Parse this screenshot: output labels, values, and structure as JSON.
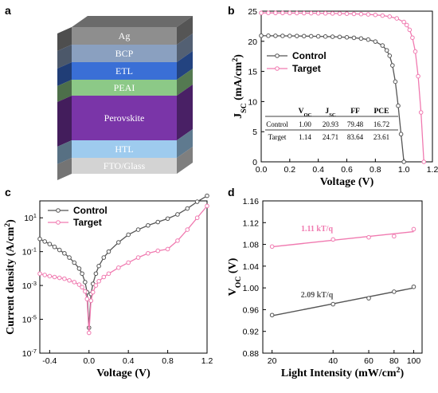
{
  "panels": {
    "a": "a",
    "b": "b",
    "c": "c",
    "d": "d"
  },
  "colors": {
    "control": "#555555",
    "target": "#f07ab0",
    "fit_d_target": "#f07ab0",
    "fit_d_control": "#555555"
  },
  "device_stack": {
    "layers": [
      {
        "label": "Ag",
        "color": "#8e8e8e"
      },
      {
        "label": "BCP",
        "color": "#8aa0c0"
      },
      {
        "label": "ETL",
        "color": "#3a6fd6"
      },
      {
        "label": "PEAI",
        "color": "#8cc987"
      },
      {
        "label": "Perovskite",
        "color": "#7a35a8"
      },
      {
        "label": "HTL",
        "color": "#9ecbee"
      },
      {
        "label": "FTO/Glass",
        "color": "#d3d3d3"
      }
    ]
  },
  "chart_data": [
    {
      "id": "b",
      "type": "line",
      "xlabel": "Voltage (V)",
      "ylabel": "J_SC (mA/cm^2)",
      "xlim": [
        0,
        1.2
      ],
      "ylim": [
        0,
        25
      ],
      "xticks": [
        "0.0",
        "0.2",
        "0.4",
        "0.6",
        "0.8",
        "1.0",
        "1.2"
      ],
      "yticks": [
        "0",
        "5",
        "10",
        "15",
        "20",
        "25"
      ],
      "legend": [
        "Control",
        "Target"
      ],
      "series": [
        {
          "name": "Control",
          "x": [
            0.0,
            0.05,
            0.1,
            0.15,
            0.2,
            0.25,
            0.3,
            0.35,
            0.4,
            0.45,
            0.5,
            0.55,
            0.6,
            0.65,
            0.7,
            0.75,
            0.8,
            0.85,
            0.88,
            0.9,
            0.92,
            0.94,
            0.96,
            0.98,
            1.0
          ],
          "y": [
            20.93,
            20.92,
            20.91,
            20.9,
            20.89,
            20.88,
            20.86,
            20.84,
            20.82,
            20.79,
            20.76,
            20.72,
            20.66,
            20.58,
            20.46,
            20.28,
            19.95,
            19.3,
            18.5,
            17.6,
            16.0,
            13.3,
            9.3,
            4.6,
            0.0
          ]
        },
        {
          "name": "Target",
          "x": [
            0.0,
            0.05,
            0.1,
            0.15,
            0.2,
            0.25,
            0.3,
            0.35,
            0.4,
            0.45,
            0.5,
            0.55,
            0.6,
            0.65,
            0.7,
            0.75,
            0.8,
            0.85,
            0.9,
            0.95,
            1.0,
            1.02,
            1.04,
            1.06,
            1.08,
            1.1,
            1.12,
            1.14
          ],
          "y": [
            24.71,
            24.71,
            24.7,
            24.7,
            24.69,
            24.68,
            24.67,
            24.66,
            24.65,
            24.64,
            24.62,
            24.6,
            24.58,
            24.55,
            24.51,
            24.46,
            24.38,
            24.27,
            24.1,
            23.8,
            23.2,
            22.7,
            21.9,
            20.6,
            18.3,
            14.2,
            8.2,
            0.0
          ]
        }
      ],
      "table": {
        "headers": [
          "",
          "V_OC",
          "J_SC",
          "FF",
          "PCE"
        ],
        "rows": [
          [
            "Control",
            "1.00",
            "20.93",
            "79.48",
            "16.72"
          ],
          [
            "Target",
            "1.14",
            "24.71",
            "83.64",
            "23.61"
          ]
        ]
      }
    },
    {
      "id": "c",
      "type": "line",
      "xlabel": "Voltage (V)",
      "ylabel": "Current density (A/cm^2)",
      "xlim": [
        -0.5,
        1.2
      ],
      "ylim_log10": [
        -7,
        2
      ],
      "xticks": [
        "-0.4",
        "0.0",
        "0.4",
        "0.8",
        "1.2"
      ],
      "yticks": [
        "10^1",
        "10^-1",
        "10^-3",
        "10^-5",
        "10^-7"
      ],
      "legend": [
        "Control",
        "Target"
      ],
      "series": [
        {
          "name": "Control",
          "x": [
            -0.5,
            -0.45,
            -0.4,
            -0.35,
            -0.3,
            -0.25,
            -0.2,
            -0.15,
            -0.1,
            -0.07,
            -0.04,
            -0.02,
            0.0,
            0.02,
            0.04,
            0.07,
            0.1,
            0.15,
            0.2,
            0.3,
            0.4,
            0.5,
            0.6,
            0.7,
            0.8,
            0.9,
            1.0,
            1.1,
            1.2
          ],
          "log10y": [
            -0.25,
            -0.4,
            -0.55,
            -0.72,
            -0.9,
            -1.1,
            -1.35,
            -1.65,
            -2.0,
            -2.3,
            -2.8,
            -3.4,
            -5.5,
            -3.5,
            -2.9,
            -2.3,
            -1.85,
            -1.35,
            -1.0,
            -0.45,
            0.0,
            0.3,
            0.55,
            0.75,
            0.95,
            1.2,
            1.55,
            1.95,
            2.3
          ]
        },
        {
          "name": "Target",
          "x": [
            -0.5,
            -0.45,
            -0.4,
            -0.35,
            -0.3,
            -0.25,
            -0.2,
            -0.15,
            -0.1,
            -0.07,
            -0.04,
            -0.02,
            0.0,
            0.02,
            0.04,
            0.07,
            0.1,
            0.15,
            0.2,
            0.3,
            0.4,
            0.5,
            0.6,
            0.7,
            0.8,
            0.9,
            1.0,
            1.1,
            1.2
          ],
          "log10y": [
            -2.3,
            -2.38,
            -2.45,
            -2.5,
            -2.55,
            -2.6,
            -2.7,
            -2.8,
            -2.95,
            -3.1,
            -3.35,
            -3.8,
            -5.8,
            -3.9,
            -3.4,
            -3.0,
            -2.75,
            -2.5,
            -2.3,
            -1.95,
            -1.65,
            -1.35,
            -1.1,
            -0.95,
            -0.85,
            -0.35,
            0.3,
            1.0,
            1.7
          ]
        }
      ]
    },
    {
      "id": "d",
      "type": "scatter",
      "xlabel": "Light Intensity (mW/cm^2)",
      "ylabel": "V_OC (V)",
      "xscale": "log",
      "xlim": [
        18,
        110
      ],
      "ylim": [
        0.88,
        1.16
      ],
      "xticks": [
        "20",
        "40",
        "60",
        "80",
        "100"
      ],
      "yticks": [
        "0.88",
        "0.92",
        "0.96",
        "1.00",
        "1.04",
        "1.08",
        "1.12",
        "1.16"
      ],
      "annotations": [
        "1.11 kT/q",
        "2.09 kT/q"
      ],
      "series": [
        {
          "name": "Target",
          "x": [
            20,
            40,
            60,
            80,
            100
          ],
          "y": [
            1.076,
            1.089,
            1.093,
            1.095,
            1.108
          ]
        },
        {
          "name": "Control",
          "x": [
            20,
            40,
            60,
            80,
            100
          ],
          "y": [
            0.95,
            0.97,
            0.981,
            0.993,
            1.002
          ]
        }
      ]
    }
  ]
}
